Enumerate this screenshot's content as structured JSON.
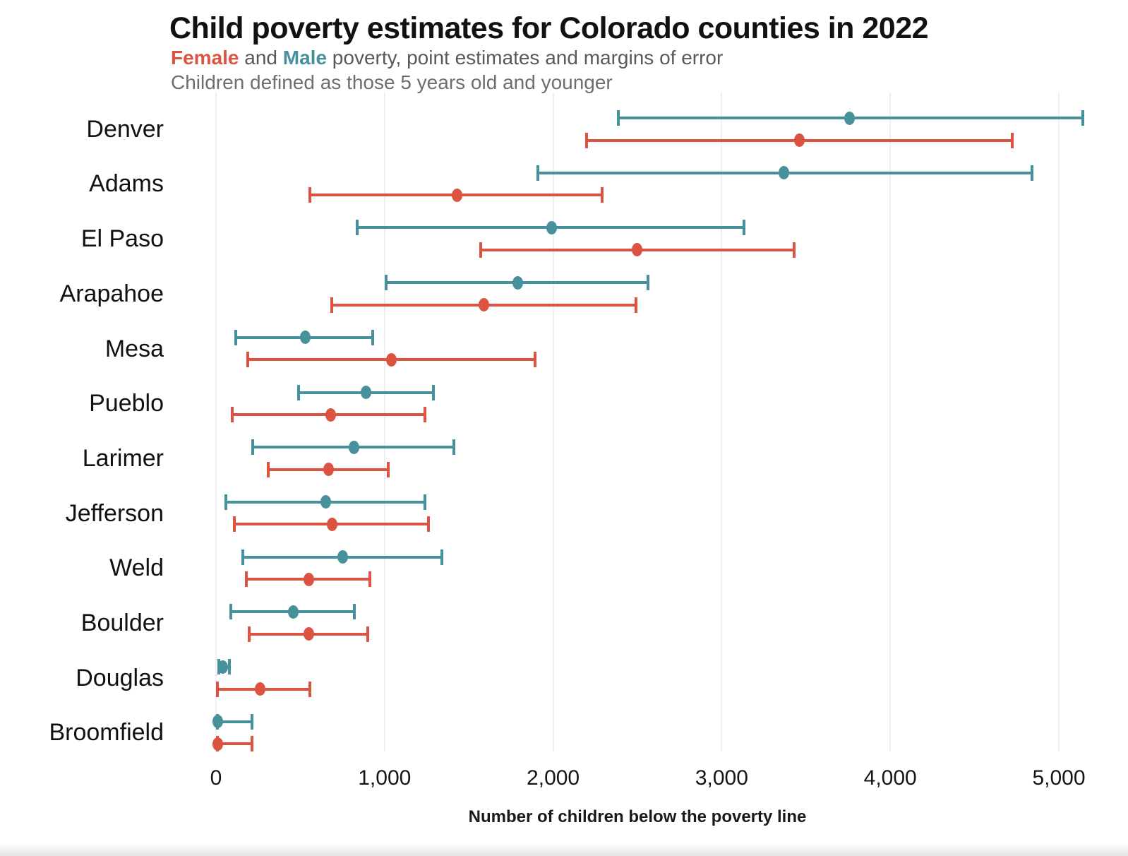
{
  "title": "Child poverty estimates for Colorado counties in 2022",
  "subtitle": {
    "female_label": "Female",
    "and_text": " and ",
    "male_label": "Male",
    "rest_text": " poverty, point estimates and margins of error"
  },
  "caption": "Children defined as those 5 years old and younger",
  "colors": {
    "female": "#DC5342",
    "male": "#47919C",
    "gridline": "#efefef"
  },
  "chart_data": {
    "type": "scatter",
    "subtype": "dot plot with horizontal error bars (point estimate ± margin of error)",
    "title": "Child poverty estimates for Colorado counties in 2022",
    "xlabel": "Number of children below the poverty line",
    "ylabel": "",
    "xlim": [
      0,
      5400
    ],
    "x_ticks": [
      {
        "value": 0,
        "label": "0"
      },
      {
        "value": 1000,
        "label": "1,000"
      },
      {
        "value": 2000,
        "label": "2,000"
      },
      {
        "value": 3000,
        "label": "3,000"
      },
      {
        "value": 4000,
        "label": "4,000"
      },
      {
        "value": 5000,
        "label": "5,000"
      }
    ],
    "grid": "vertical gridlines at each x tick",
    "legend": "encoded in subtitle: Female = red, Male = teal; male bar drawn above female bar for each county",
    "counties": [
      {
        "name": "Denver",
        "male": {
          "estimate": 3760,
          "low": 2380,
          "high": 5150
        },
        "female": {
          "estimate": 3460,
          "low": 2190,
          "high": 4730
        }
      },
      {
        "name": "Adams",
        "male": {
          "estimate": 3370,
          "low": 1900,
          "high": 4850
        },
        "female": {
          "estimate": 1430,
          "low": 550,
          "high": 2300
        }
      },
      {
        "name": "El Paso",
        "male": {
          "estimate": 1990,
          "low": 830,
          "high": 3140
        },
        "female": {
          "estimate": 2500,
          "low": 1560,
          "high": 3440
        }
      },
      {
        "name": "Arapahoe",
        "male": {
          "estimate": 1790,
          "low": 1000,
          "high": 2570
        },
        "female": {
          "estimate": 1590,
          "low": 680,
          "high": 2500
        }
      },
      {
        "name": "Mesa",
        "male": {
          "estimate": 530,
          "low": 110,
          "high": 940
        },
        "female": {
          "estimate": 1040,
          "low": 180,
          "high": 1900
        }
      },
      {
        "name": "Pueblo",
        "male": {
          "estimate": 890,
          "low": 480,
          "high": 1300
        },
        "female": {
          "estimate": 680,
          "low": 90,
          "high": 1250
        }
      },
      {
        "name": "Larimer",
        "male": {
          "estimate": 820,
          "low": 210,
          "high": 1420
        },
        "female": {
          "estimate": 670,
          "low": 300,
          "high": 1030
        }
      },
      {
        "name": "Jefferson",
        "male": {
          "estimate": 650,
          "low": 50,
          "high": 1250
        },
        "female": {
          "estimate": 690,
          "low": 100,
          "high": 1270
        }
      },
      {
        "name": "Weld",
        "male": {
          "estimate": 750,
          "low": 150,
          "high": 1350
        },
        "female": {
          "estimate": 550,
          "low": 170,
          "high": 920
        }
      },
      {
        "name": "Boulder",
        "male": {
          "estimate": 460,
          "low": 80,
          "high": 830
        },
        "female": {
          "estimate": 550,
          "low": 190,
          "high": 910
        }
      },
      {
        "name": "Douglas",
        "male": {
          "estimate": 40,
          "low": 10,
          "high": 90
        },
        "female": {
          "estimate": 260,
          "low": 0,
          "high": 565
        }
      },
      {
        "name": "Broomfield",
        "male": {
          "estimate": 10,
          "low": 0,
          "high": 220
        },
        "female": {
          "estimate": 10,
          "low": 0,
          "high": 220
        }
      }
    ]
  }
}
